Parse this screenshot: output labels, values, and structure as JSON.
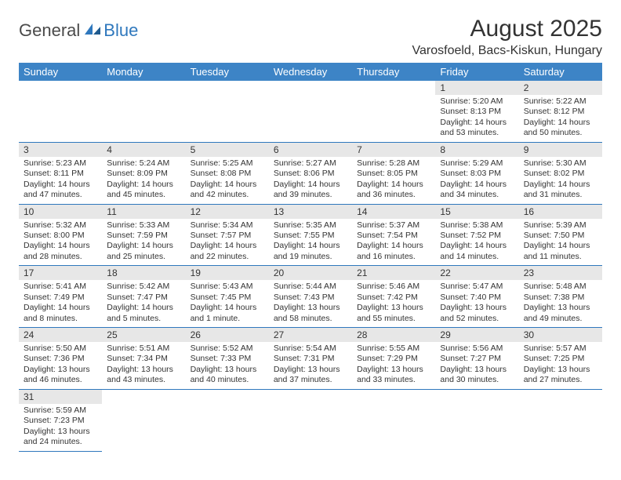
{
  "logo": {
    "text_dark": "General",
    "text_blue": "Blue"
  },
  "header": {
    "title": "August 2025",
    "location": "Varosfoeld, Bacs-Kiskun, Hungary"
  },
  "colors": {
    "header_bg": "#3d84c6",
    "daynum_bg": "#e7e7e7",
    "rule": "#2f78bd",
    "text": "#333333",
    "logo_blue": "#2f78bd",
    "logo_gray": "#4a4a4a"
  },
  "days_of_week": [
    "Sunday",
    "Monday",
    "Tuesday",
    "Wednesday",
    "Thursday",
    "Friday",
    "Saturday"
  ],
  "weeks": [
    [
      null,
      null,
      null,
      null,
      null,
      {
        "n": "1",
        "sunrise": "5:20 AM",
        "sunset": "8:13 PM",
        "daylight": "14 hours and 53 minutes."
      },
      {
        "n": "2",
        "sunrise": "5:22 AM",
        "sunset": "8:12 PM",
        "daylight": "14 hours and 50 minutes."
      }
    ],
    [
      {
        "n": "3",
        "sunrise": "5:23 AM",
        "sunset": "8:11 PM",
        "daylight": "14 hours and 47 minutes."
      },
      {
        "n": "4",
        "sunrise": "5:24 AM",
        "sunset": "8:09 PM",
        "daylight": "14 hours and 45 minutes."
      },
      {
        "n": "5",
        "sunrise": "5:25 AM",
        "sunset": "8:08 PM",
        "daylight": "14 hours and 42 minutes."
      },
      {
        "n": "6",
        "sunrise": "5:27 AM",
        "sunset": "8:06 PM",
        "daylight": "14 hours and 39 minutes."
      },
      {
        "n": "7",
        "sunrise": "5:28 AM",
        "sunset": "8:05 PM",
        "daylight": "14 hours and 36 minutes."
      },
      {
        "n": "8",
        "sunrise": "5:29 AM",
        "sunset": "8:03 PM",
        "daylight": "14 hours and 34 minutes."
      },
      {
        "n": "9",
        "sunrise": "5:30 AM",
        "sunset": "8:02 PM",
        "daylight": "14 hours and 31 minutes."
      }
    ],
    [
      {
        "n": "10",
        "sunrise": "5:32 AM",
        "sunset": "8:00 PM",
        "daylight": "14 hours and 28 minutes."
      },
      {
        "n": "11",
        "sunrise": "5:33 AM",
        "sunset": "7:59 PM",
        "daylight": "14 hours and 25 minutes."
      },
      {
        "n": "12",
        "sunrise": "5:34 AM",
        "sunset": "7:57 PM",
        "daylight": "14 hours and 22 minutes."
      },
      {
        "n": "13",
        "sunrise": "5:35 AM",
        "sunset": "7:55 PM",
        "daylight": "14 hours and 19 minutes."
      },
      {
        "n": "14",
        "sunrise": "5:37 AM",
        "sunset": "7:54 PM",
        "daylight": "14 hours and 16 minutes."
      },
      {
        "n": "15",
        "sunrise": "5:38 AM",
        "sunset": "7:52 PM",
        "daylight": "14 hours and 14 minutes."
      },
      {
        "n": "16",
        "sunrise": "5:39 AM",
        "sunset": "7:50 PM",
        "daylight": "14 hours and 11 minutes."
      }
    ],
    [
      {
        "n": "17",
        "sunrise": "5:41 AM",
        "sunset": "7:49 PM",
        "daylight": "14 hours and 8 minutes."
      },
      {
        "n": "18",
        "sunrise": "5:42 AM",
        "sunset": "7:47 PM",
        "daylight": "14 hours and 5 minutes."
      },
      {
        "n": "19",
        "sunrise": "5:43 AM",
        "sunset": "7:45 PM",
        "daylight": "14 hours and 1 minute."
      },
      {
        "n": "20",
        "sunrise": "5:44 AM",
        "sunset": "7:43 PM",
        "daylight": "13 hours and 58 minutes."
      },
      {
        "n": "21",
        "sunrise": "5:46 AM",
        "sunset": "7:42 PM",
        "daylight": "13 hours and 55 minutes."
      },
      {
        "n": "22",
        "sunrise": "5:47 AM",
        "sunset": "7:40 PM",
        "daylight": "13 hours and 52 minutes."
      },
      {
        "n": "23",
        "sunrise": "5:48 AM",
        "sunset": "7:38 PM",
        "daylight": "13 hours and 49 minutes."
      }
    ],
    [
      {
        "n": "24",
        "sunrise": "5:50 AM",
        "sunset": "7:36 PM",
        "daylight": "13 hours and 46 minutes."
      },
      {
        "n": "25",
        "sunrise": "5:51 AM",
        "sunset": "7:34 PM",
        "daylight": "13 hours and 43 minutes."
      },
      {
        "n": "26",
        "sunrise": "5:52 AM",
        "sunset": "7:33 PM",
        "daylight": "13 hours and 40 minutes."
      },
      {
        "n": "27",
        "sunrise": "5:54 AM",
        "sunset": "7:31 PM",
        "daylight": "13 hours and 37 minutes."
      },
      {
        "n": "28",
        "sunrise": "5:55 AM",
        "sunset": "7:29 PM",
        "daylight": "13 hours and 33 minutes."
      },
      {
        "n": "29",
        "sunrise": "5:56 AM",
        "sunset": "7:27 PM",
        "daylight": "13 hours and 30 minutes."
      },
      {
        "n": "30",
        "sunrise": "5:57 AM",
        "sunset": "7:25 PM",
        "daylight": "13 hours and 27 minutes."
      }
    ],
    [
      {
        "n": "31",
        "sunrise": "5:59 AM",
        "sunset": "7:23 PM",
        "daylight": "13 hours and 24 minutes."
      },
      null,
      null,
      null,
      null,
      null,
      null
    ]
  ],
  "labels": {
    "sunrise_prefix": "Sunrise: ",
    "sunset_prefix": "Sunset: ",
    "daylight_prefix": "Daylight: "
  }
}
